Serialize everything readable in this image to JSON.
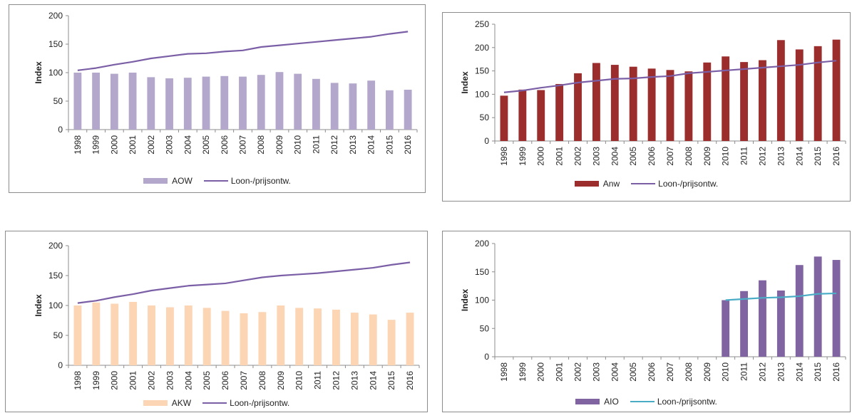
{
  "chart_data": [
    {
      "id": "aow",
      "type": "bar",
      "categories": [
        "1998",
        "1999",
        "2000",
        "2001",
        "2002",
        "2003",
        "2004",
        "2005",
        "2006",
        "2007",
        "2008",
        "2009",
        "2010",
        "2011",
        "2012",
        "2013",
        "2014",
        "2015",
        "2016"
      ],
      "ylabel": "Index",
      "ylim": [
        0,
        200
      ],
      "yticks": [
        0,
        50,
        100,
        150,
        200
      ],
      "legend_placement": "bottom",
      "series": [
        {
          "name": "AOW",
          "kind": "bar",
          "color": "#b4a7cc",
          "values": [
            100,
            100,
            98,
            100,
            92,
            90,
            91,
            93,
            94,
            93,
            96,
            101,
            98,
            89,
            82,
            81,
            86,
            69,
            70
          ]
        },
        {
          "name": "Loon-/prijsontw.",
          "kind": "line",
          "color": "#7b5fa6",
          "values": [
            104,
            108,
            114,
            119,
            125,
            129,
            133,
            134,
            137,
            139,
            145,
            148,
            151,
            154,
            157,
            160,
            163,
            168,
            172
          ]
        }
      ]
    },
    {
      "id": "anw",
      "type": "bar",
      "categories": [
        "1998",
        "1999",
        "2000",
        "2001",
        "2002",
        "2003",
        "2004",
        "2005",
        "2006",
        "2007",
        "2008",
        "2009",
        "2010",
        "2011",
        "2012",
        "2013",
        "2014",
        "2015",
        "2016"
      ],
      "ylabel": "Index",
      "ylim": [
        0,
        250
      ],
      "yticks": [
        0,
        50,
        100,
        150,
        200,
        250
      ],
      "legend_placement": "bottom",
      "series": [
        {
          "name": "Anw",
          "kind": "bar",
          "color": "#9b2d2d",
          "values": [
            97,
            110,
            109,
            122,
            145,
            167,
            163,
            159,
            155,
            152,
            149,
            168,
            181,
            169,
            173,
            216,
            196,
            203,
            217
          ]
        },
        {
          "name": "Loon-/prijsontw.",
          "kind": "line",
          "color": "#7b5fa6",
          "values": [
            104,
            108,
            114,
            119,
            125,
            129,
            133,
            134,
            137,
            139,
            145,
            148,
            151,
            154,
            157,
            160,
            163,
            168,
            172
          ]
        }
      ]
    },
    {
      "id": "akw",
      "type": "bar",
      "categories": [
        "1998",
        "1999",
        "2000",
        "2001",
        "2002",
        "2003",
        "2004",
        "2005",
        "2006",
        "2007",
        "2008",
        "2009",
        "2010",
        "2011",
        "2012",
        "2013",
        "2014",
        "2015",
        "2016"
      ],
      "ylabel": "Index",
      "ylim": [
        0,
        200
      ],
      "yticks": [
        0,
        50,
        100,
        150,
        200
      ],
      "legend_placement": "bottom",
      "series": [
        {
          "name": "AKW",
          "kind": "bar",
          "color": "#fcd5b4",
          "values": [
            100,
            105,
            103,
            106,
            100,
            97,
            100,
            96,
            91,
            87,
            89,
            100,
            96,
            95,
            93,
            88,
            85,
            76,
            88
          ]
        },
        {
          "name": "Loon-/prijsontw.",
          "kind": "line",
          "color": "#7b5fa6",
          "values": [
            104,
            108,
            114,
            119,
            125,
            129,
            133,
            135,
            137,
            142,
            147,
            150,
            152,
            154,
            157,
            160,
            163,
            168,
            172
          ]
        }
      ]
    },
    {
      "id": "aio",
      "type": "bar",
      "categories": [
        "1998",
        "1999",
        "2000",
        "2001",
        "2002",
        "2003",
        "2004",
        "2005",
        "2006",
        "2007",
        "2008",
        "2009",
        "2010",
        "2011",
        "2012",
        "2013",
        "2014",
        "2015",
        "2016"
      ],
      "ylabel": "Index",
      "ylim": [
        0,
        200
      ],
      "yticks": [
        0,
        50,
        100,
        150,
        200
      ],
      "legend_placement": "bottom",
      "series": [
        {
          "name": "AIO",
          "kind": "bar",
          "color": "#8064a2",
          "values": [
            null,
            null,
            null,
            null,
            null,
            null,
            null,
            null,
            null,
            null,
            null,
            null,
            100,
            116,
            135,
            117,
            162,
            177,
            171
          ]
        },
        {
          "name": "Loon-/prijsontw.",
          "kind": "line",
          "color": "#4bacc6",
          "values": [
            null,
            null,
            null,
            null,
            null,
            null,
            null,
            null,
            null,
            null,
            null,
            null,
            100,
            102,
            104,
            105,
            107,
            111,
            112
          ]
        }
      ]
    }
  ]
}
